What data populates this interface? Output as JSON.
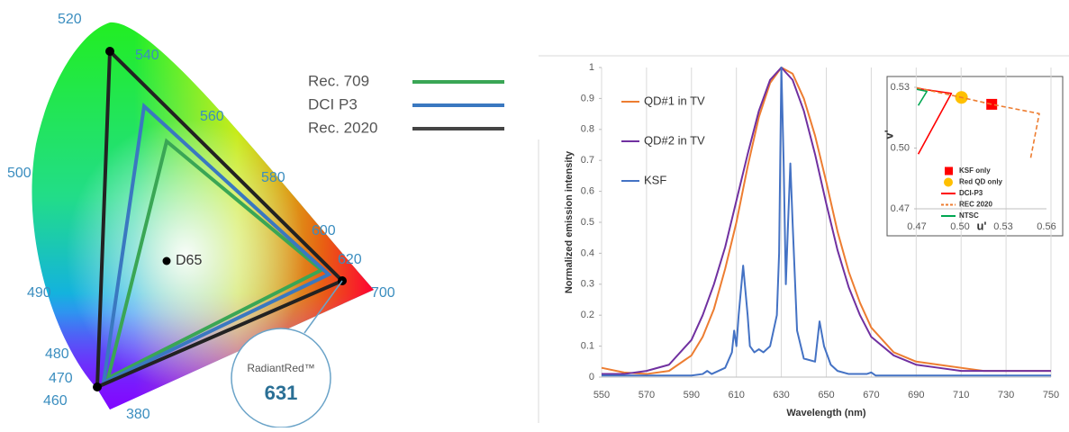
{
  "diagram": {
    "wavelengths": [
      "520",
      "540",
      "560",
      "580",
      "600",
      "620",
      "700",
      "500",
      "490",
      "480",
      "470",
      "460",
      "380"
    ],
    "white_point": "D65",
    "legend": [
      "Rec. 709",
      "DCI P3",
      "Rec. 2020"
    ],
    "callout": {
      "name": "RadiantRed™",
      "value": "631"
    }
  },
  "chart_data": [
    {
      "type": "line",
      "xlabel": "Wavelength (nm)",
      "ylabel": "Normalized emission intensity",
      "xlim": [
        550,
        750
      ],
      "xticks": [
        550,
        570,
        590,
        610,
        630,
        650,
        670,
        690,
        710,
        730,
        750
      ],
      "ylim": [
        0,
        1
      ],
      "yticks": [
        0,
        0.1,
        0.2,
        0.3,
        0.4,
        0.5,
        0.6,
        0.7,
        0.8,
        0.9,
        1
      ],
      "grid": "x",
      "legend": "upper left",
      "series": [
        {
          "name": "QD#1 in TV",
          "color": "#ed7d31",
          "x": [
            550,
            560,
            570,
            580,
            590,
            595,
            600,
            605,
            610,
            615,
            620,
            625,
            630,
            635,
            640,
            645,
            650,
            655,
            660,
            665,
            670,
            680,
            690,
            700,
            710,
            720,
            730,
            740,
            750
          ],
          "values": [
            0.03,
            0.015,
            0.01,
            0.02,
            0.07,
            0.13,
            0.22,
            0.35,
            0.5,
            0.68,
            0.84,
            0.95,
            1.0,
            0.98,
            0.9,
            0.78,
            0.63,
            0.47,
            0.34,
            0.24,
            0.16,
            0.08,
            0.05,
            0.04,
            0.03,
            0.02,
            0.02,
            0.02,
            0.02
          ]
        },
        {
          "name": "QD#2 in TV",
          "color": "#7030a0",
          "x": [
            550,
            560,
            570,
            580,
            590,
            595,
            600,
            605,
            610,
            615,
            620,
            625,
            630,
            635,
            640,
            645,
            650,
            655,
            660,
            665,
            670,
            680,
            690,
            700,
            710,
            720,
            730,
            740,
            750
          ],
          "values": [
            0.01,
            0.01,
            0.02,
            0.04,
            0.12,
            0.2,
            0.3,
            0.42,
            0.57,
            0.72,
            0.86,
            0.96,
            1.0,
            0.96,
            0.86,
            0.72,
            0.56,
            0.41,
            0.29,
            0.2,
            0.13,
            0.07,
            0.04,
            0.03,
            0.02,
            0.02,
            0.02,
            0.02,
            0.02
          ]
        },
        {
          "name": "KSF",
          "color": "#4472c4",
          "x": [
            550,
            570,
            590,
            595,
            597,
            599,
            605,
            608,
            609,
            610,
            611,
            613,
            615,
            616,
            618,
            620,
            622,
            625,
            628,
            629,
            630,
            631,
            632,
            633,
            634,
            635,
            637,
            640,
            645,
            647,
            649,
            652,
            655,
            660,
            668,
            670,
            672,
            690,
            750
          ],
          "values": [
            0.005,
            0.005,
            0.005,
            0.01,
            0.02,
            0.01,
            0.03,
            0.08,
            0.15,
            0.1,
            0.2,
            0.36,
            0.2,
            0.1,
            0.08,
            0.09,
            0.08,
            0.1,
            0.2,
            0.4,
            1.0,
            0.7,
            0.3,
            0.5,
            0.69,
            0.5,
            0.15,
            0.06,
            0.05,
            0.18,
            0.1,
            0.04,
            0.02,
            0.01,
            0.01,
            0.015,
            0.005,
            0.005,
            0.005
          ]
        }
      ]
    },
    {
      "type": "line",
      "xlabel": "u'",
      "ylabel": "v'",
      "xlim": [
        0.47,
        0.56
      ],
      "xticks": [
        0.47,
        {
          "value": 0.5,
          "label": "0.50"
        },
        0.53,
        0.56
      ],
      "ylim": [
        0.47,
        0.53
      ],
      "yticks": [
        0.47,
        {
          "value": 0.5,
          "label": "0.50"
        },
        0.53
      ],
      "legend": "lower right",
      "series": [
        {
          "name": "KSF only",
          "color": "#ff0000",
          "marker": "square",
          "x": [
            0.522
          ],
          "values": [
            0.5216
          ]
        },
        {
          "name": "Red QD only",
          "color": "#ffc000",
          "marker": "circle",
          "x": [
            0.501
          ],
          "values": [
            0.525
          ]
        },
        {
          "name": "DCI-P3",
          "color": "#ff0000",
          "x": [
            0.471,
            0.494,
            0.47
          ],
          "values": [
            0.497,
            0.527,
            0.5295
          ]
        },
        {
          "name": "REC 2020",
          "color": "#ed7d31",
          "dashed": true,
          "x": [
            0.47,
            0.501,
            0.522,
            0.555,
            0.549
          ],
          "values": [
            0.5298,
            0.525,
            0.5216,
            0.517,
            0.495
          ]
        },
        {
          "name": "NTSC",
          "color": "#00a651",
          "x": [
            0.471,
            0.477,
            0.47
          ],
          "values": [
            0.521,
            0.528,
            0.529
          ]
        }
      ]
    }
  ]
}
